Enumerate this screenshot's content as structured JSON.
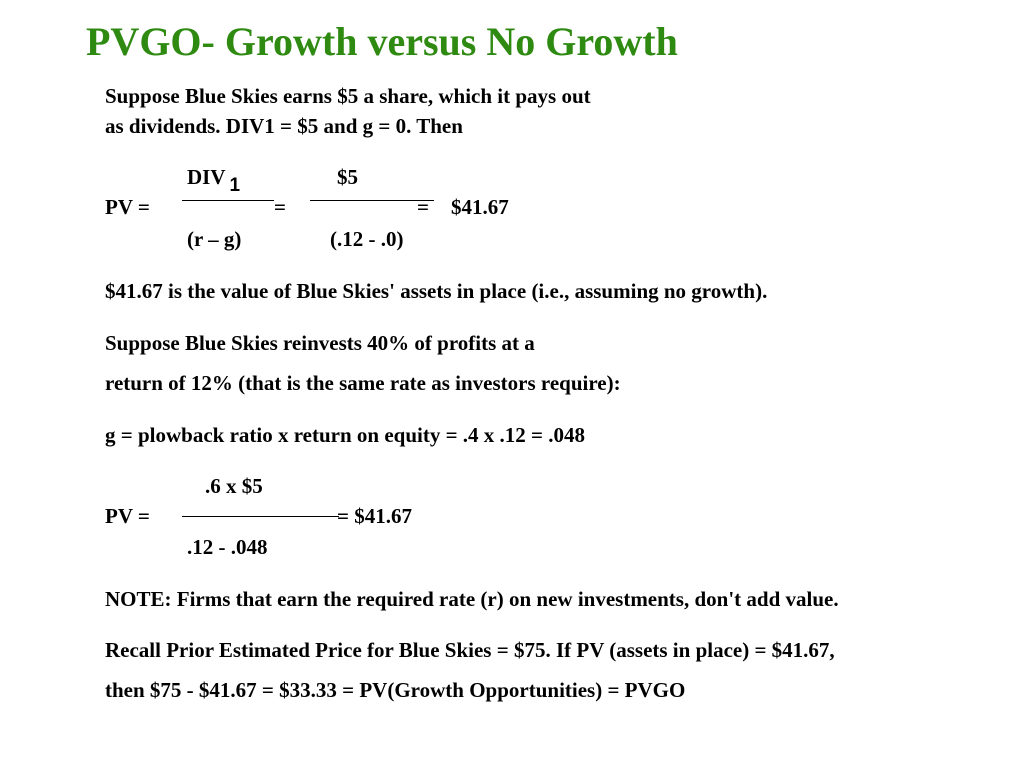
{
  "slide": {
    "title": "PVGO- Growth versus No Growth",
    "intro_line1": "Suppose Blue Skies earns $5 a share, which it pays out",
    "intro_line2": "as dividends.  DIV1 = $5 and g = 0.  Then",
    "formula1": {
      "num_left": "DIV",
      "num_left_sub": "1",
      "num_right": "$5",
      "pv_label": "PV  =",
      "eq1": "=",
      "eq2": "=",
      "result": "$41.67",
      "den_left": "(r – g)",
      "den_right": "(.12 - .0)"
    },
    "statement_no_growth": "$41.67 is the value of Blue Skies' assets in place (i.e., assuming no growth).",
    "reinvest_line1": "Suppose Blue Skies reinvests 40% of profits at a",
    "reinvest_line2": "return of 12% (that is the same rate as investors require):",
    "growth_equation": "g = plowback ratio x return on equity = .4 x .12 = .048",
    "formula2": {
      "numerator": ".6 x $5",
      "pv_label": "PV  =",
      "eq": "=  $41.67",
      "denominator": ".12 - .048"
    },
    "note": "NOTE: Firms that earn the required rate (r) on new investments, don't add value.",
    "recall_line1": "Recall Prior Estimated Price for Blue Skies = $75.  If PV (assets in place) = $41.67,",
    "recall_line2": "then $75 - $41.67 = $33.33 = PV(Growth Opportunities) = PVGO"
  }
}
